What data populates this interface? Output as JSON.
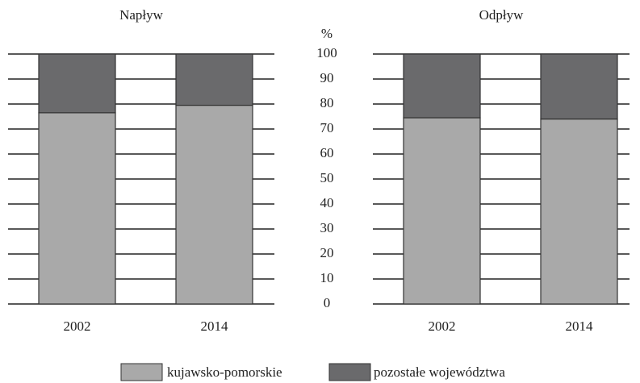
{
  "chart_data": [
    {
      "type": "bar",
      "stacked": true,
      "title": "Napływ",
      "y_label": "%",
      "categories": [
        "2002",
        "2014"
      ],
      "series": [
        {
          "name": "kujawsko-pomorskie",
          "color": "#a9a9a9",
          "values": [
            76.5,
            79.5
          ]
        },
        {
          "name": "pozostałe województwa",
          "color": "#6a6a6c",
          "values": [
            23.5,
            20.5
          ]
        }
      ],
      "ylim": [
        0,
        100
      ],
      "yticks": [
        0,
        10,
        20,
        30,
        40,
        50,
        60,
        70,
        80,
        90,
        100
      ],
      "grid": true
    },
    {
      "type": "bar",
      "stacked": true,
      "title": "Odpływ",
      "categories": [
        "2002",
        "2014"
      ],
      "series": [
        {
          "name": "kujawsko-pomorskie",
          "color": "#a9a9a9",
          "values": [
            74.5,
            74
          ]
        },
        {
          "name": "pozostałe województwa",
          "color": "#6a6a6c",
          "values": [
            25.5,
            26
          ]
        }
      ],
      "ylim": [
        0,
        100
      ],
      "yticks": [
        0,
        10,
        20,
        30,
        40,
        50,
        60,
        70,
        80,
        90,
        100
      ],
      "grid": true
    }
  ]
}
